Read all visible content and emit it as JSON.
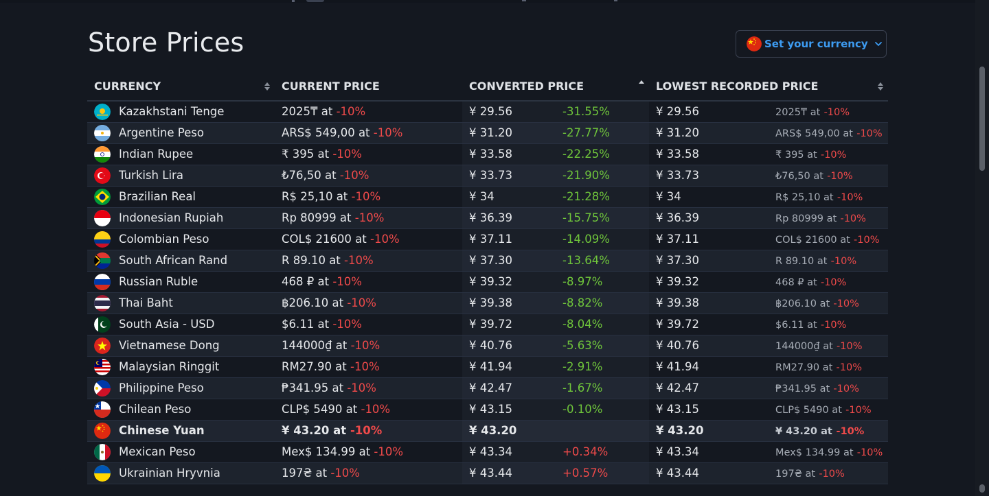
{
  "page": {
    "title": "Store Prices"
  },
  "currency_button": {
    "label": "Set your currency",
    "flag": "china-flag-icon"
  },
  "table": {
    "headers": {
      "currency": "CURRENCY",
      "current": "CURRENT PRICE",
      "converted": "CONVERTED PRICE",
      "lowest": "LOWEST RECORDED PRICE"
    },
    "colors": {
      "negative": "#ef4a4a",
      "positive_saving": "#6fc53b",
      "accent": "#3d9cf2"
    },
    "rows": [
      {
        "flag": "kazakhstan-flag",
        "currency": "Kazakhstani Tenge",
        "price": "2025₸ at",
        "discount": "-10%",
        "converted": "¥ 29.56",
        "diff": "-31.55%",
        "lowest": "¥ 29.56",
        "lowest_price": "2025₸ at",
        "lowest_discount": "-10%"
      },
      {
        "flag": "argentina-flag",
        "currency": "Argentine Peso",
        "price": "ARS$ 549,00 at",
        "discount": "-10%",
        "converted": "¥ 31.20",
        "diff": "-27.77%",
        "lowest": "¥ 31.20",
        "lowest_price": "ARS$ 549,00 at",
        "lowest_discount": "-10%"
      },
      {
        "flag": "india-flag",
        "currency": "Indian Rupee",
        "price": "₹ 395 at",
        "discount": "-10%",
        "converted": "¥ 33.58",
        "diff": "-22.25%",
        "lowest": "¥ 33.58",
        "lowest_price": "₹ 395 at",
        "lowest_discount": "-10%"
      },
      {
        "flag": "turkey-flag",
        "currency": "Turkish Lira",
        "price": "₺76,50 at",
        "discount": "-10%",
        "converted": "¥ 33.73",
        "diff": "-21.90%",
        "lowest": "¥ 33.73",
        "lowest_price": "₺76,50 at",
        "lowest_discount": "-10%"
      },
      {
        "flag": "brazil-flag",
        "currency": "Brazilian Real",
        "price": "R$ 25,10 at",
        "discount": "-10%",
        "converted": "¥ 34",
        "diff": "-21.28%",
        "lowest": "¥ 34",
        "lowest_price": "R$ 25,10 at",
        "lowest_discount": "-10%"
      },
      {
        "flag": "indonesia-flag",
        "currency": "Indonesian Rupiah",
        "price": "Rp 80999 at",
        "discount": "-10%",
        "converted": "¥ 36.39",
        "diff": "-15.75%",
        "lowest": "¥ 36.39",
        "lowest_price": "Rp 80999 at",
        "lowest_discount": "-10%"
      },
      {
        "flag": "colombia-flag",
        "currency": "Colombian Peso",
        "price": "COL$ 21600 at",
        "discount": "-10%",
        "converted": "¥ 37.11",
        "diff": "-14.09%",
        "lowest": "¥ 37.11",
        "lowest_price": "COL$ 21600 at",
        "lowest_discount": "-10%"
      },
      {
        "flag": "south-africa-flag",
        "currency": "South African Rand",
        "price": "R 89.10 at",
        "discount": "-10%",
        "converted": "¥ 37.30",
        "diff": "-13.64%",
        "lowest": "¥ 37.30",
        "lowest_price": "R 89.10 at",
        "lowest_discount": "-10%"
      },
      {
        "flag": "russia-flag",
        "currency": "Russian Ruble",
        "price": "468 ₽ at",
        "discount": "-10%",
        "converted": "¥ 39.32",
        "diff": "-8.97%",
        "lowest": "¥ 39.32",
        "lowest_price": "468 ₽ at",
        "lowest_discount": "-10%"
      },
      {
        "flag": "thailand-flag",
        "currency": "Thai Baht",
        "price": "฿206.10 at",
        "discount": "-10%",
        "converted": "¥ 39.38",
        "diff": "-8.82%",
        "lowest": "¥ 39.38",
        "lowest_price": "฿206.10 at",
        "lowest_discount": "-10%"
      },
      {
        "flag": "pakistan-flag",
        "currency": "South Asia - USD",
        "price": "$6.11 at",
        "discount": "-10%",
        "converted": "¥ 39.72",
        "diff": "-8.04%",
        "lowest": "¥ 39.72",
        "lowest_price": "$6.11 at",
        "lowest_discount": "-10%"
      },
      {
        "flag": "vietnam-flag",
        "currency": "Vietnamese Dong",
        "price": "144000₫ at",
        "discount": "-10%",
        "converted": "¥ 40.76",
        "diff": "-5.63%",
        "lowest": "¥ 40.76",
        "lowest_price": "144000₫ at",
        "lowest_discount": "-10%"
      },
      {
        "flag": "malaysia-flag",
        "currency": "Malaysian Ringgit",
        "price": "RM27.90 at",
        "discount": "-10%",
        "converted": "¥ 41.94",
        "diff": "-2.91%",
        "lowest": "¥ 41.94",
        "lowest_price": "RM27.90 at",
        "lowest_discount": "-10%"
      },
      {
        "flag": "philippines-flag",
        "currency": "Philippine Peso",
        "price": "₱341.95 at",
        "discount": "-10%",
        "converted": "¥ 42.47",
        "diff": "-1.67%",
        "lowest": "¥ 42.47",
        "lowest_price": "₱341.95 at",
        "lowest_discount": "-10%"
      },
      {
        "flag": "chile-flag",
        "currency": "Chilean Peso",
        "price": "CLP$ 5490 at",
        "discount": "-10%",
        "converted": "¥ 43.15",
        "diff": "-0.10%",
        "lowest": "¥ 43.15",
        "lowest_price": "CLP$ 5490 at",
        "lowest_discount": "-10%"
      },
      {
        "flag": "china-flag",
        "currency": "Chinese Yuan",
        "price": "¥ 43.20 at",
        "discount": "-10%",
        "converted": "¥ 43.20",
        "diff": "",
        "lowest": "¥ 43.20",
        "lowest_price": "¥ 43.20 at",
        "lowest_discount": "-10%"
      },
      {
        "flag": "mexico-flag",
        "currency": "Mexican Peso",
        "price": "Mex$ 134.99 at",
        "discount": "-10%",
        "converted": "¥ 43.34",
        "diff": "+0.34%",
        "lowest": "¥ 43.34",
        "lowest_price": "Mex$ 134.99 at",
        "lowest_discount": "-10%"
      },
      {
        "flag": "ukraine-flag",
        "currency": "Ukrainian Hryvnia",
        "price": "197₴ at",
        "discount": "-10%",
        "converted": "¥ 43.44",
        "diff": "+0.57%",
        "lowest": "¥ 43.44",
        "lowest_price": "197₴ at",
        "lowest_discount": "-10%"
      }
    ]
  }
}
